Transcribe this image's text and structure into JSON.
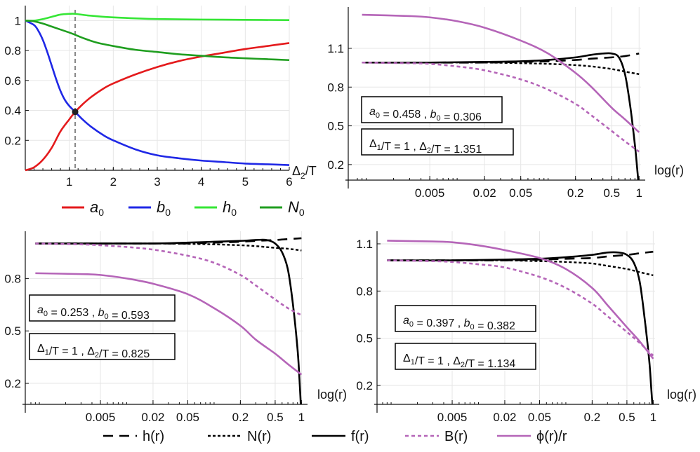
{
  "colors": {
    "a0": "#e41a1c",
    "b0": "#1f28e6",
    "h0": "#35e635",
    "N0": "#1f9e1f",
    "f": "#000000",
    "h": "#000000",
    "N": "#000000",
    "B": "#b565b8",
    "phi": "#b565b8",
    "marker_line": "#888888"
  },
  "legend_top": [
    {
      "key": "a0",
      "label": "a",
      "sub": "0",
      "color": "#e41a1c"
    },
    {
      "key": "b0",
      "label": "b",
      "sub": "0",
      "color": "#1f28e6"
    },
    {
      "key": "h0",
      "label": "h",
      "sub": "0",
      "color": "#35e635"
    },
    {
      "key": "N0",
      "label": "N",
      "sub": "0",
      "color": "#1f9e1f"
    }
  ],
  "legend_bottom": [
    {
      "key": "h",
      "label": "h(r)",
      "style": "dashed"
    },
    {
      "key": "N",
      "label": "N(r)",
      "style": "dotted"
    },
    {
      "key": "f",
      "label": "f(r)",
      "style": "solid"
    },
    {
      "key": "B",
      "label": "B(r)",
      "style": "dotted-purple"
    },
    {
      "key": "phi",
      "label": "ϕ(r)/r",
      "style": "solid-purple"
    }
  ],
  "chart_data": [
    {
      "id": "panel-a",
      "type": "line",
      "xlabel": "Δ2/T",
      "ylabel": "",
      "xlim": [
        0,
        6
      ],
      "ylim": [
        0,
        1.1
      ],
      "xticks": [
        1,
        2,
        3,
        4,
        5,
        6
      ],
      "yticks": [
        0.2,
        0.4,
        0.6,
        0.8,
        1
      ],
      "vline_x": 1.134,
      "marker": {
        "x": 1.134,
        "y": 0.39
      },
      "series": [
        {
          "name": "a0",
          "color": "#e41a1c",
          "x": [
            0,
            0.2,
            0.4,
            0.6,
            0.8,
            1.0,
            1.134,
            1.3,
            1.5,
            1.8,
            2.0,
            2.5,
            3.0,
            3.5,
            4.0,
            4.5,
            5.0,
            5.5,
            6.0
          ],
          "y": [
            0.0,
            0.02,
            0.07,
            0.15,
            0.26,
            0.34,
            0.39,
            0.44,
            0.49,
            0.55,
            0.58,
            0.64,
            0.69,
            0.73,
            0.76,
            0.785,
            0.81,
            0.83,
            0.85
          ]
        },
        {
          "name": "b0",
          "color": "#1f28e6",
          "x": [
            0,
            0.2,
            0.3,
            0.4,
            0.5,
            0.6,
            0.7,
            0.8,
            0.9,
            1.0,
            1.134,
            1.3,
            1.5,
            1.8,
            2.0,
            2.5,
            3.0,
            3.5,
            4.0,
            4.5,
            5.0,
            5.5,
            6.0
          ],
          "y": [
            1.0,
            0.97,
            0.93,
            0.87,
            0.79,
            0.7,
            0.61,
            0.53,
            0.47,
            0.43,
            0.39,
            0.34,
            0.29,
            0.23,
            0.2,
            0.14,
            0.1,
            0.08,
            0.065,
            0.055,
            0.045,
            0.04,
            0.035
          ]
        },
        {
          "name": "h0",
          "color": "#35e635",
          "x": [
            0,
            0.2,
            0.4,
            0.6,
            0.8,
            1.0,
            1.134,
            1.4,
            1.8,
            2.5,
            3.0,
            4.0,
            5.0,
            6.0
          ],
          "y": [
            1.0,
            1.0,
            1.01,
            1.025,
            1.04,
            1.045,
            1.045,
            1.035,
            1.025,
            1.015,
            1.01,
            1.007,
            1.005,
            1.003
          ]
        },
        {
          "name": "N0",
          "color": "#1f9e1f",
          "x": [
            0,
            0.2,
            0.4,
            0.6,
            0.8,
            1.0,
            1.134,
            1.3,
            1.6,
            2.0,
            2.5,
            3.0,
            3.5,
            4.0,
            4.5,
            5.0,
            5.5,
            6.0
          ],
          "y": [
            1.0,
            0.995,
            0.98,
            0.96,
            0.94,
            0.92,
            0.905,
            0.885,
            0.855,
            0.83,
            0.805,
            0.79,
            0.775,
            0.765,
            0.755,
            0.748,
            0.742,
            0.736
          ]
        }
      ]
    },
    {
      "id": "panel-b",
      "type": "line",
      "xscale": "log",
      "xlabel": "log(r)",
      "xlim": [
        0.0008,
        1.05
      ],
      "ylim": [
        0.08,
        1.42
      ],
      "xticks": [
        0.005,
        0.02,
        0.05,
        0.2,
        0.5,
        1
      ],
      "xtick_labels": [
        "0.005",
        "0.02",
        "0.05",
        "0.2",
        "0.5",
        "1"
      ],
      "yticks": [
        0.2,
        0.5,
        0.8,
        1.1
      ],
      "annotations": [
        {
          "parts": [
            "a",
            "0",
            " = 0.458 , ",
            "b",
            "0",
            " = 0.306"
          ]
        },
        {
          "parts": [
            "Δ",
            "1",
            "/T = 1 , ",
            "Δ",
            "2",
            "/T = 1.351"
          ]
        }
      ],
      "series": [
        {
          "name": "h(r)",
          "style": "dashed",
          "x": [
            0.0009,
            0.005,
            0.02,
            0.05,
            0.1,
            0.2,
            0.3,
            0.5,
            0.7,
            1.0
          ],
          "y": [
            0.99,
            0.99,
            0.99,
            0.995,
            1.0,
            1.01,
            1.02,
            1.03,
            1.04,
            1.06
          ]
        },
        {
          "name": "N(r)",
          "style": "dotted",
          "x": [
            0.0009,
            0.005,
            0.02,
            0.05,
            0.1,
            0.2,
            0.3,
            0.5,
            0.7,
            1.0
          ],
          "y": [
            0.99,
            0.99,
            0.99,
            0.985,
            0.98,
            0.97,
            0.96,
            0.94,
            0.92,
            0.9
          ]
        },
        {
          "name": "f(r)",
          "style": "solid",
          "x": [
            0.0009,
            0.005,
            0.02,
            0.05,
            0.1,
            0.2,
            0.3,
            0.4,
            0.5,
            0.6,
            0.7,
            0.8,
            0.9,
            0.95,
            1.0
          ],
          "y": [
            0.99,
            0.99,
            0.995,
            1.0,
            1.01,
            1.03,
            1.05,
            1.06,
            1.06,
            1.03,
            0.9,
            0.65,
            0.35,
            0.18,
            0.0
          ]
        },
        {
          "name": "B(r)",
          "style": "dotted-purple",
          "x": [
            0.0009,
            0.003,
            0.005,
            0.01,
            0.02,
            0.05,
            0.1,
            0.2,
            0.3,
            0.5,
            0.7,
            1.0
          ],
          "y": [
            0.99,
            0.985,
            0.98,
            0.96,
            0.93,
            0.86,
            0.78,
            0.67,
            0.58,
            0.46,
            0.38,
            0.3
          ]
        },
        {
          "name": "ϕ(r)/r",
          "style": "solid-purple",
          "x": [
            0.0009,
            0.003,
            0.005,
            0.01,
            0.02,
            0.05,
            0.1,
            0.2,
            0.3,
            0.5,
            0.7,
            1.0
          ],
          "y": [
            1.36,
            1.35,
            1.34,
            1.31,
            1.26,
            1.16,
            1.06,
            0.91,
            0.8,
            0.64,
            0.55,
            0.45
          ]
        }
      ]
    },
    {
      "id": "panel-c",
      "type": "line",
      "xscale": "log",
      "xlabel": "log(r)",
      "xlim": [
        0.0008,
        1.05
      ],
      "ylim": [
        0.08,
        1.07
      ],
      "xticks": [
        0.005,
        0.02,
        0.05,
        0.2,
        0.5,
        1
      ],
      "xtick_labels": [
        "0.005",
        "0.02",
        "0.05",
        "0.2",
        "0.5",
        "1"
      ],
      "yticks": [
        0.2,
        0.5,
        0.8
      ],
      "annotations": [
        {
          "parts": [
            "a",
            "0",
            " = 0.253 , ",
            "b",
            "0",
            " = 0.593"
          ]
        },
        {
          "parts": [
            "Δ",
            "1",
            "/T = 1 , ",
            "Δ",
            "2",
            "/T = 0.825"
          ]
        }
      ],
      "series": [
        {
          "name": "h(r)",
          "style": "dashed",
          "x": [
            0.0009,
            0.005,
            0.02,
            0.05,
            0.1,
            0.2,
            0.3,
            0.5,
            0.7,
            1.0
          ],
          "y": [
            1.0,
            1.0,
            1.0,
            1.0,
            1.005,
            1.01,
            1.015,
            1.02,
            1.025,
            1.03
          ]
        },
        {
          "name": "N(r)",
          "style": "dotted",
          "x": [
            0.0009,
            0.005,
            0.02,
            0.05,
            0.1,
            0.2,
            0.3,
            0.5,
            0.7,
            1.0
          ],
          "y": [
            1.0,
            1.0,
            1.0,
            0.998,
            0.995,
            0.99,
            0.985,
            0.975,
            0.97,
            0.96
          ]
        },
        {
          "name": "f(r)",
          "style": "solid",
          "x": [
            0.0009,
            0.005,
            0.02,
            0.05,
            0.1,
            0.2,
            0.3,
            0.4,
            0.5,
            0.6,
            0.7,
            0.8,
            0.9,
            0.95,
            1.0
          ],
          "y": [
            1.0,
            1.0,
            1.0,
            1.005,
            1.01,
            1.015,
            1.02,
            1.02,
            1.0,
            0.95,
            0.85,
            0.65,
            0.4,
            0.22,
            0.0
          ]
        },
        {
          "name": "B(r)",
          "style": "dotted-purple",
          "x": [
            0.0009,
            0.003,
            0.005,
            0.01,
            0.02,
            0.05,
            0.1,
            0.2,
            0.3,
            0.5,
            0.7,
            1.0
          ],
          "y": [
            1.0,
            0.995,
            0.99,
            0.98,
            0.965,
            0.93,
            0.89,
            0.82,
            0.76,
            0.68,
            0.63,
            0.59
          ]
        },
        {
          "name": "ϕ(r)/r",
          "style": "solid-purple",
          "x": [
            0.0009,
            0.003,
            0.005,
            0.01,
            0.02,
            0.05,
            0.1,
            0.2,
            0.3,
            0.5,
            0.7,
            1.0
          ],
          "y": [
            0.83,
            0.825,
            0.82,
            0.8,
            0.77,
            0.71,
            0.63,
            0.53,
            0.45,
            0.37,
            0.31,
            0.25
          ]
        }
      ]
    },
    {
      "id": "panel-d",
      "type": "line",
      "xscale": "log",
      "xlabel": "log(r)",
      "xlim": [
        0.0008,
        1.05
      ],
      "ylim": [
        0.08,
        1.18
      ],
      "xticks": [
        0.005,
        0.02,
        0.05,
        0.2,
        0.5,
        1
      ],
      "xtick_labels": [
        "0.005",
        "0.02",
        "0.05",
        "0.2",
        "0.5",
        "1"
      ],
      "yticks": [
        0.2,
        0.5,
        0.8,
        1.1
      ],
      "annotations": [
        {
          "parts": [
            "a",
            "0",
            " = 0.397 , ",
            "b",
            "0",
            " = 0.382"
          ]
        },
        {
          "parts": [
            "Δ",
            "1",
            "/T = 1 , ",
            "Δ",
            "2",
            "/T = 1.134"
          ]
        }
      ],
      "series": [
        {
          "name": "h(r)",
          "style": "dashed",
          "x": [
            0.0009,
            0.005,
            0.02,
            0.05,
            0.1,
            0.2,
            0.3,
            0.5,
            0.7,
            1.0
          ],
          "y": [
            0.995,
            0.995,
            0.995,
            1.0,
            1.005,
            1.01,
            1.02,
            1.03,
            1.04,
            1.05
          ]
        },
        {
          "name": "N(r)",
          "style": "dotted",
          "x": [
            0.0009,
            0.005,
            0.02,
            0.05,
            0.1,
            0.2,
            0.3,
            0.5,
            0.7,
            1.0
          ],
          "y": [
            0.995,
            0.995,
            0.995,
            0.99,
            0.985,
            0.975,
            0.96,
            0.94,
            0.92,
            0.9
          ]
        },
        {
          "name": "f(r)",
          "style": "solid",
          "x": [
            0.0009,
            0.005,
            0.02,
            0.05,
            0.1,
            0.2,
            0.3,
            0.4,
            0.5,
            0.6,
            0.7,
            0.8,
            0.9,
            0.95,
            1.0
          ],
          "y": [
            0.995,
            0.995,
            1.0,
            1.005,
            1.015,
            1.03,
            1.045,
            1.045,
            1.03,
            0.98,
            0.86,
            0.62,
            0.36,
            0.18,
            0.0
          ]
        },
        {
          "name": "B(r)",
          "style": "dotted-purple",
          "x": [
            0.0009,
            0.003,
            0.005,
            0.01,
            0.02,
            0.05,
            0.1,
            0.2,
            0.3,
            0.5,
            0.7,
            1.0
          ],
          "y": [
            0.995,
            0.99,
            0.985,
            0.97,
            0.95,
            0.89,
            0.82,
            0.72,
            0.64,
            0.54,
            0.47,
            0.39
          ]
        },
        {
          "name": "ϕ(r)/r",
          "style": "solid-purple",
          "x": [
            0.0009,
            0.003,
            0.005,
            0.01,
            0.02,
            0.05,
            0.1,
            0.2,
            0.3,
            0.5,
            0.7,
            1.0
          ],
          "y": [
            1.12,
            1.115,
            1.11,
            1.09,
            1.06,
            1.01,
            0.94,
            0.82,
            0.71,
            0.57,
            0.48,
            0.37
          ]
        }
      ]
    }
  ]
}
